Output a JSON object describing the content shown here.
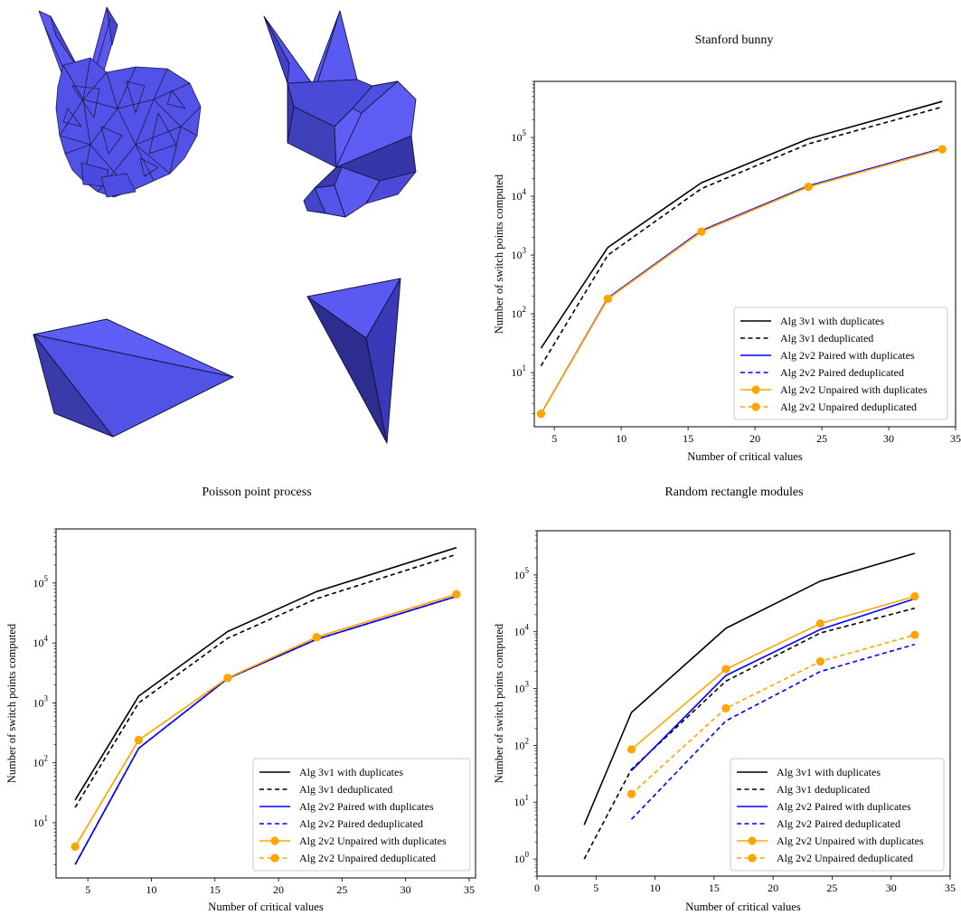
{
  "meshes": {
    "descriptions": [
      "bunny-fine-mesh",
      "bunny-coarse-mesh",
      "flat-pyramid-mesh",
      "tetrahedron-mesh"
    ],
    "face_color": "#5555ee",
    "edge_color": "#1a1a4a"
  },
  "legend_style": [
    {
      "color": "#000000",
      "dash": false,
      "marker": false
    },
    {
      "color": "#000000",
      "dash": true,
      "marker": false
    },
    {
      "color": "#0000ff",
      "dash": false,
      "marker": false
    },
    {
      "color": "#0000ff",
      "dash": true,
      "marker": false
    },
    {
      "color": "#ffa500",
      "dash": false,
      "marker": true
    },
    {
      "color": "#ffa500",
      "dash": true,
      "marker": true
    }
  ],
  "chart_data": [
    {
      "type": "line",
      "title": "Stanford bunny",
      "xlabel": "Number of critical values",
      "ylabel": "Number of switch points computed",
      "yscale": "log",
      "xlim": [
        3.5,
        35
      ],
      "ylim": [
        1.2,
        900000
      ],
      "xticks": [
        5,
        10,
        15,
        20,
        25,
        30,
        35
      ],
      "yticks": [
        10,
        100,
        1000,
        10000,
        100000
      ],
      "ytick_labels": [
        [
          "10",
          "1"
        ],
        [
          "10",
          "2"
        ],
        [
          "10",
          "3"
        ],
        [
          "10",
          "4"
        ],
        [
          "10",
          "5"
        ]
      ],
      "legend_position": "lower-right",
      "series": [
        {
          "name": "Alg 3v1 with duplicates",
          "x": [
            4,
            9,
            16,
            24,
            34
          ],
          "y": [
            26,
            1350,
            17000,
            95000,
            410000
          ]
        },
        {
          "name": "Alg 3v1 deduplicated",
          "x": [
            4,
            9,
            16,
            24,
            34
          ],
          "y": [
            13,
            1000,
            13500,
            78000,
            330000
          ]
        },
        {
          "name": "Alg 2v2 Paired with duplicates",
          "x": [
            4,
            9,
            16,
            24,
            34
          ],
          "y": [
            2,
            185,
            2600,
            15000,
            65000
          ]
        },
        {
          "name": "Alg 2v2 Paired deduplicated",
          "x": [
            4,
            9,
            16,
            24,
            34
          ],
          "y": [
            2,
            185,
            2600,
            15000,
            65000
          ]
        },
        {
          "name": "Alg 2v2 Unpaired with duplicates",
          "x": [
            4,
            9,
            16,
            24,
            34
          ],
          "y": [
            2,
            180,
            2500,
            14500,
            63000
          ]
        },
        {
          "name": "Alg 2v2 Unpaired deduplicated",
          "x": [
            4,
            9,
            16,
            24,
            34
          ],
          "y": [
            2,
            180,
            2500,
            14500,
            63000
          ]
        }
      ]
    },
    {
      "type": "line",
      "title": "Poisson point process",
      "xlabel": "Number of critical values",
      "ylabel": "Number of switch points computed",
      "yscale": "log",
      "xlim": [
        2.5,
        35.5
      ],
      "ylim": [
        1.2,
        800000
      ],
      "xticks": [
        5,
        10,
        15,
        20,
        25,
        30,
        35
      ],
      "yticks": [
        10,
        100,
        1000,
        10000,
        100000
      ],
      "ytick_labels": [
        [
          "10",
          "1"
        ],
        [
          "10",
          "2"
        ],
        [
          "10",
          "3"
        ],
        [
          "10",
          "4"
        ],
        [
          "10",
          "5"
        ]
      ],
      "legend_position": "lower-right",
      "series": [
        {
          "name": "Alg 3v1 with duplicates",
          "x": [
            4,
            9,
            16,
            23,
            34
          ],
          "y": [
            24,
            1300,
            15500,
            72000,
            390000
          ]
        },
        {
          "name": "Alg 3v1 deduplicated",
          "x": [
            4,
            9,
            16,
            23,
            34
          ],
          "y": [
            18,
            1000,
            12000,
            55000,
            300000
          ]
        },
        {
          "name": "Alg 2v2 Paired with duplicates",
          "x": [
            4,
            9,
            16,
            23,
            34
          ],
          "y": [
            2,
            175,
            2550,
            11500,
            60000
          ]
        },
        {
          "name": "Alg 2v2 Paired deduplicated",
          "x": [
            4,
            9,
            16,
            23,
            34
          ],
          "y": [
            2,
            175,
            2550,
            11500,
            60000
          ]
        },
        {
          "name": "Alg 2v2 Unpaired with duplicates",
          "x": [
            4,
            9,
            16,
            23,
            34
          ],
          "y": [
            4,
            240,
            2600,
            12500,
            65000
          ]
        },
        {
          "name": "Alg 2v2 Unpaired deduplicated",
          "x": [
            4,
            9,
            16,
            23,
            34
          ],
          "y": [
            4,
            240,
            2600,
            12500,
            65000
          ]
        }
      ]
    },
    {
      "type": "line",
      "title": "Random rectangle modules",
      "xlabel": "Number of critical values",
      "ylabel": "Number of switch points computed",
      "yscale": "log",
      "xlim": [
        0,
        35
      ],
      "ylim": [
        0.5,
        600000
      ],
      "xticks": [
        0,
        5,
        10,
        15,
        20,
        25,
        30,
        35
      ],
      "yticks": [
        1,
        10,
        100,
        1000,
        10000,
        100000
      ],
      "ytick_labels": [
        [
          "10",
          "0"
        ],
        [
          "10",
          "1"
        ],
        [
          "10",
          "2"
        ],
        [
          "10",
          "3"
        ],
        [
          "10",
          "4"
        ],
        [
          "10",
          "5"
        ]
      ],
      "legend_position": "lower-right",
      "series": [
        {
          "name": "Alg 3v1 with duplicates",
          "x": [
            4,
            8,
            16,
            24,
            32
          ],
          "y": [
            4,
            380,
            11500,
            78000,
            240000
          ]
        },
        {
          "name": "Alg 3v1 deduplicated",
          "x": [
            4,
            8,
            16,
            24,
            32
          ],
          "y": [
            1,
            38,
            1350,
            9500,
            26000
          ]
        },
        {
          "name": "Alg 2v2 Paired with duplicates",
          "x": [
            8,
            16,
            24,
            32
          ],
          "y": [
            36,
            1700,
            11000,
            38000
          ]
        },
        {
          "name": "Alg 2v2 Paired deduplicated",
          "x": [
            8,
            16,
            24,
            32
          ],
          "y": [
            5,
            270,
            2000,
            6000
          ]
        },
        {
          "name": "Alg 2v2 Unpaired with duplicates",
          "x": [
            8,
            16,
            24,
            32
          ],
          "y": [
            85,
            2200,
            14000,
            42000
          ]
        },
        {
          "name": "Alg 2v2 Unpaired deduplicated",
          "x": [
            8,
            16,
            24,
            32
          ],
          "y": [
            14,
            450,
            3000,
            8800
          ]
        }
      ]
    }
  ]
}
